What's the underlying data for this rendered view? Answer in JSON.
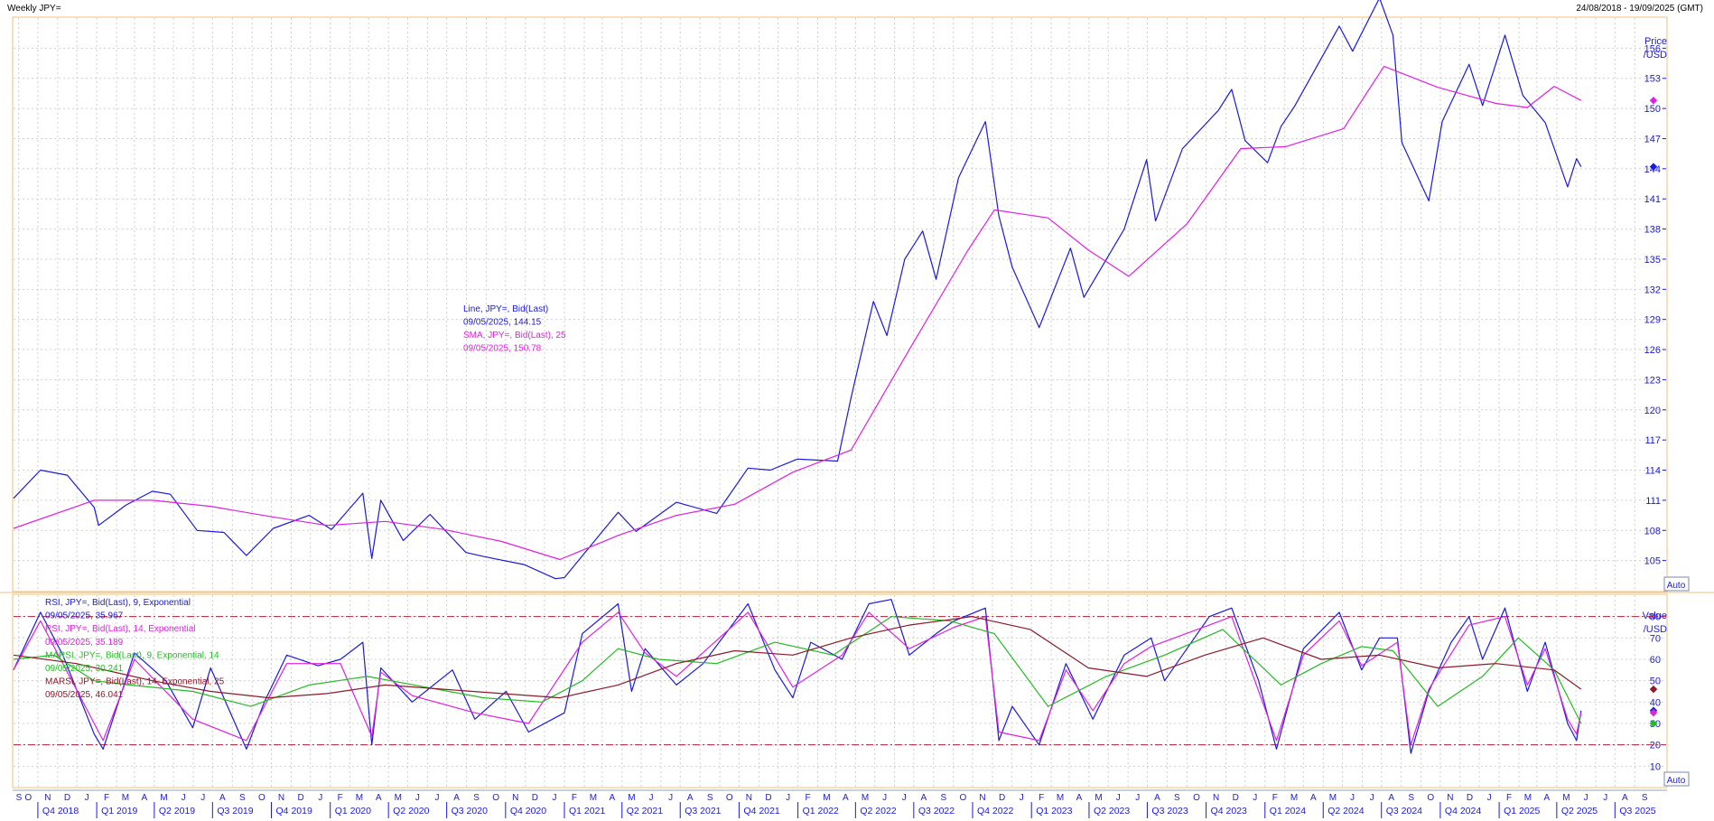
{
  "header": {
    "title": "Weekly JPY=",
    "date_range": "24/08/2018 - 19/09/2025 (GMT)"
  },
  "price_panel": {
    "axis_title_1": "Price",
    "axis_title_2": "/USD",
    "auto_label": "Auto",
    "legend": [
      {
        "text": "Line, JPY=, Bid(Last)",
        "color": "#1a1adb"
      },
      {
        "text": "09/05/2025, 144.15",
        "color": "#1a1adb"
      },
      {
        "text": "SMA, JPY=, Bid(Last),  25",
        "color": "#e020e0"
      },
      {
        "text": "09/05/2025, 150.78",
        "color": "#e020e0"
      }
    ]
  },
  "rsi_panel": {
    "axis_title_1": "Value",
    "axis_title_2": "/USD",
    "auto_label": "Auto",
    "legend": [
      {
        "text": "RSI, JPY=, Bid(Last),  9, Exponential",
        "color": "#1a1adb"
      },
      {
        "text": "09/05/2025, 35.967",
        "color": "#1a1adb"
      },
      {
        "text": "RSI, JPY=, Bid(Last),  14, Exponential",
        "color": "#e020e0"
      },
      {
        "text": "09/05/2025, 35.189",
        "color": "#e020e0"
      },
      {
        "text": "MARSI, JPY=, Bid(Last),  9, Exponential, 14",
        "color": "#22bb22"
      },
      {
        "text": "09/05/2025, 30.241",
        "color": "#22bb22"
      },
      {
        "text": "MARSI, JPY=, Bid(Last),  14, Exponential, 25",
        "color": "#8b1a2a"
      },
      {
        "text": "09/05/2025, 46.041",
        "color": "#8b1a2a"
      }
    ]
  },
  "x_axis": {
    "months": [
      "S",
      "O",
      "N",
      "D",
      "J",
      "F",
      "M",
      "A",
      "M",
      "J",
      "J",
      "A",
      "S",
      "O",
      "N",
      "D",
      "J",
      "F",
      "M",
      "A",
      "M",
      "J",
      "J",
      "A",
      "S",
      "O",
      "N",
      "D",
      "J",
      "F",
      "M",
      "A",
      "M",
      "J",
      "J",
      "A",
      "S",
      "O",
      "N",
      "D",
      "J",
      "F",
      "M",
      "A",
      "M",
      "J",
      "J",
      "A",
      "S",
      "O",
      "N",
      "D",
      "J",
      "F",
      "M",
      "A",
      "M",
      "J",
      "J",
      "A",
      "S",
      "O",
      "N",
      "D",
      "J",
      "F",
      "M",
      "A",
      "M",
      "J",
      "J",
      "A",
      "S",
      "O",
      "N",
      "D",
      "J",
      "F",
      "M",
      "A",
      "M",
      "J",
      "J",
      "A",
      "S"
    ],
    "quarters": [
      "Q4 2018",
      "Q1 2019",
      "Q2 2019",
      "Q3 2019",
      "Q4 2019",
      "Q1 2020",
      "Q2 2020",
      "Q3 2020",
      "Q4 2020",
      "Q1 2021",
      "Q2 2021",
      "Q3 2021",
      "Q4 2021",
      "Q1 2022",
      "Q2 2022",
      "Q3 2022",
      "Q4 2022",
      "Q1 2023",
      "Q2 2023",
      "Q3 2023",
      "Q4 2023",
      "Q1 2024",
      "Q2 2024",
      "Q3 2024",
      "Q4 2024",
      "Q1 2025",
      "Q2 2025",
      "Q3 2025"
    ]
  },
  "chart_data": [
    {
      "type": "line",
      "title": "Weekly JPY=",
      "ylabel": "Price /USD",
      "ylim": [
        102,
        159
      ],
      "yticks": [
        105,
        108,
        111,
        114,
        117,
        120,
        123,
        126,
        129,
        132,
        135,
        138,
        141,
        144,
        147,
        150,
        153,
        156
      ],
      "x_start": "2018-08-24",
      "x_end": "2025-09-19",
      "grid": true,
      "series": [
        {
          "name": "Line, JPY=, Bid(Last)",
          "color": "#1a1adb",
          "x": [
            "2018-08-24",
            "2018-10-05",
            "2018-11-16",
            "2018-12-28",
            "2019-01-04",
            "2019-02-15",
            "2019-03-29",
            "2019-04-26",
            "2019-06-07",
            "2019-07-19",
            "2019-08-23",
            "2019-10-04",
            "2019-11-29",
            "2020-01-03",
            "2020-02-21",
            "2020-03-06",
            "2020-03-20",
            "2020-04-24",
            "2020-06-05",
            "2020-07-31",
            "2020-08-28",
            "2020-10-30",
            "2020-12-18",
            "2021-01-01",
            "2021-03-26",
            "2021-04-23",
            "2021-06-25",
            "2021-08-27",
            "2021-10-15",
            "2021-11-19",
            "2021-12-31",
            "2022-03-04",
            "2022-03-25",
            "2022-04-29",
            "2022-05-20",
            "2022-06-17",
            "2022-07-15",
            "2022-08-05",
            "2022-09-09",
            "2022-10-21",
            "2022-11-11",
            "2022-12-02",
            "2023-01-13",
            "2023-03-03",
            "2023-03-24",
            "2023-05-26",
            "2023-06-30",
            "2023-07-14",
            "2023-08-25",
            "2023-10-20",
            "2023-11-10",
            "2023-12-01",
            "2024-01-05",
            "2024-01-26",
            "2024-02-16",
            "2024-04-26",
            "2024-05-17",
            "2024-06-28",
            "2024-07-19",
            "2024-08-02",
            "2024-09-13",
            "2024-10-04",
            "2024-11-15",
            "2024-12-06",
            "2025-01-10",
            "2025-02-07",
            "2025-03-14",
            "2025-04-18",
            "2025-05-02",
            "2025-05-09"
          ],
          "y": [
            111.2,
            114.0,
            113.5,
            110.3,
            108.5,
            110.5,
            111.9,
            111.6,
            108.0,
            107.8,
            105.5,
            108.2,
            109.5,
            108.1,
            111.7,
            105.2,
            111.0,
            107.0,
            109.6,
            105.8,
            105.4,
            104.6,
            103.2,
            103.3,
            109.8,
            107.9,
            110.8,
            109.7,
            114.2,
            114.0,
            115.1,
            114.9,
            121.2,
            130.8,
            127.4,
            135.0,
            137.8,
            133.0,
            143.1,
            148.7,
            139.3,
            134.2,
            128.2,
            136.1,
            131.2,
            138.0,
            144.9,
            138.8,
            146.0,
            149.8,
            151.9,
            146.8,
            144.6,
            148.2,
            150.2,
            158.2,
            155.7,
            161.0,
            157.3,
            146.6,
            140.8,
            148.7,
            154.4,
            150.3,
            157.3,
            151.3,
            148.6,
            142.2,
            145.0,
            144.2
          ]
        },
        {
          "name": "SMA, JPY=, Bid(Last),  25",
          "color": "#e020e0",
          "x": [
            "2018-08-24",
            "2018-12-28",
            "2019-03-29",
            "2019-06-28",
            "2019-09-27",
            "2019-12-27",
            "2020-03-27",
            "2020-06-26",
            "2020-09-25",
            "2020-12-25",
            "2021-03-26",
            "2021-06-25",
            "2021-09-24",
            "2021-12-24",
            "2022-03-25",
            "2022-06-24",
            "2022-09-23",
            "2022-11-04",
            "2023-01-27",
            "2023-03-31",
            "2023-06-02",
            "2023-09-01",
            "2023-11-24",
            "2024-02-02",
            "2024-05-03",
            "2024-07-05",
            "2024-09-27",
            "2024-12-27",
            "2025-02-14",
            "2025-03-28",
            "2025-05-09"
          ],
          "y": [
            108.2,
            111.0,
            111.0,
            110.4,
            109.4,
            108.5,
            108.9,
            108.1,
            106.9,
            105.1,
            107.5,
            109.5,
            110.6,
            113.8,
            116.0,
            126.0,
            135.8,
            139.9,
            139.1,
            135.9,
            133.3,
            138.5,
            146.0,
            146.2,
            148.0,
            154.2,
            152.1,
            150.5,
            150.1,
            152.2,
            150.8
          ]
        }
      ]
    },
    {
      "type": "line",
      "ylabel": "Value /USD",
      "ylim": [
        0,
        90
      ],
      "yticks": [
        10,
        20,
        30,
        40,
        50,
        60,
        70,
        80
      ],
      "reference_lines": [
        20,
        80
      ],
      "x_start": "2018-08-24",
      "x_end": "2025-09-19",
      "grid": true,
      "series": [
        {
          "name": "RSI, JPY=, Bid(Last),  9, Exponential",
          "color": "#1a1adb",
          "x": [
            "2018-08-24",
            "2018-10-05",
            "2018-11-09",
            "2018-12-28",
            "2019-01-11",
            "2019-03-01",
            "2019-04-19",
            "2019-05-31",
            "2019-06-28",
            "2019-08-23",
            "2019-09-20",
            "2019-10-25",
            "2019-12-13",
            "2020-01-17",
            "2020-02-21",
            "2020-03-06",
            "2020-03-20",
            "2020-05-08",
            "2020-07-10",
            "2020-08-14",
            "2020-10-02",
            "2020-11-06",
            "2021-01-01",
            "2021-01-29",
            "2021-03-26",
            "2021-04-16",
            "2021-05-07",
            "2021-06-25",
            "2021-08-06",
            "2021-10-15",
            "2021-11-26",
            "2021-12-24",
            "2022-01-21",
            "2022-03-11",
            "2022-04-22",
            "2022-05-27",
            "2022-06-24",
            "2022-08-05",
            "2022-09-02",
            "2022-10-21",
            "2022-11-11",
            "2022-12-02",
            "2023-01-13",
            "2023-02-24",
            "2023-04-07",
            "2023-05-26",
            "2023-07-07",
            "2023-07-28",
            "2023-10-06",
            "2023-11-10",
            "2023-12-22",
            "2024-01-19",
            "2024-03-01",
            "2024-04-26",
            "2024-05-31",
            "2024-06-28",
            "2024-07-26",
            "2024-08-16",
            "2024-09-13",
            "2024-10-18",
            "2024-11-15",
            "2024-12-06",
            "2025-01-10",
            "2025-02-14",
            "2025-03-14",
            "2025-04-18",
            "2025-05-02",
            "2025-05-09"
          ],
          "y": [
            55,
            82,
            62,
            25,
            18,
            63,
            50,
            28,
            56,
            18,
            40,
            62,
            57,
            60,
            68,
            20,
            56,
            40,
            55,
            32,
            45,
            26,
            35,
            72,
            86,
            45,
            65,
            48,
            58,
            86,
            55,
            42,
            68,
            60,
            86,
            88,
            62,
            72,
            78,
            84,
            22,
            38,
            20,
            58,
            32,
            62,
            70,
            50,
            80,
            84,
            50,
            18,
            65,
            82,
            55,
            70,
            70,
            16,
            45,
            68,
            80,
            60,
            84,
            45,
            68,
            30,
            22,
            36
          ]
        },
        {
          "name": "RSI, JPY=, Bid(Last),  14, Exponential",
          "color": "#e020e0",
          "x": [
            "2018-08-24",
            "2018-10-05",
            "2018-12-28",
            "2019-01-11",
            "2019-03-01",
            "2019-05-31",
            "2019-08-23",
            "2019-10-25",
            "2020-01-17",
            "2020-03-06",
            "2020-03-20",
            "2020-05-08",
            "2020-08-14",
            "2020-11-06",
            "2021-01-29",
            "2021-03-26",
            "2021-05-07",
            "2021-06-25",
            "2021-10-15",
            "2021-12-24",
            "2022-03-11",
            "2022-04-22",
            "2022-06-24",
            "2022-09-02",
            "2022-10-21",
            "2022-11-11",
            "2023-01-13",
            "2023-02-24",
            "2023-04-07",
            "2023-05-26",
            "2023-07-07",
            "2023-10-06",
            "2023-11-10",
            "2024-01-19",
            "2024-03-01",
            "2024-04-26",
            "2024-05-31",
            "2024-07-26",
            "2024-08-16",
            "2024-09-13",
            "2024-11-15",
            "2025-01-10",
            "2025-02-14",
            "2025-03-14",
            "2025-04-18",
            "2025-05-02",
            "2025-05-09"
          ],
          "y": [
            55,
            78,
            30,
            22,
            60,
            32,
            22,
            58,
            58,
            24,
            54,
            43,
            35,
            30,
            68,
            82,
            63,
            52,
            82,
            47,
            62,
            82,
            65,
            75,
            80,
            26,
            22,
            55,
            36,
            58,
            66,
            76,
            80,
            22,
            62,
            78,
            57,
            68,
            20,
            46,
            76,
            80,
            48,
            65,
            32,
            25,
            35
          ]
        },
        {
          "name": "MARSI, JPY=, Bid(Last),  9, Exponential, 14",
          "color": "#22bb22",
          "x": [
            "2018-08-24",
            "2018-10-26",
            "2018-12-28",
            "2019-02-22",
            "2019-05-31",
            "2019-08-30",
            "2019-11-29",
            "2020-02-28",
            "2020-05-29",
            "2020-08-28",
            "2020-11-27",
            "2021-01-29",
            "2021-03-26",
            "2021-05-28",
            "2021-08-27",
            "2021-11-26",
            "2022-02-25",
            "2022-05-27",
            "2022-08-26",
            "2022-11-04",
            "2023-01-27",
            "2023-04-28",
            "2023-07-28",
            "2023-10-27",
            "2024-01-26",
            "2024-03-29",
            "2024-05-31",
            "2024-07-19",
            "2024-09-27",
            "2024-12-06",
            "2025-01-31",
            "2025-03-28",
            "2025-05-09"
          ],
          "y": [
            60,
            62,
            50,
            48,
            45,
            38,
            48,
            52,
            47,
            42,
            40,
            50,
            65,
            60,
            58,
            68,
            62,
            80,
            78,
            72,
            38,
            52,
            62,
            74,
            48,
            58,
            66,
            64,
            38,
            52,
            70,
            55,
            30
          ]
        },
        {
          "name": "MARSI, JPY=, Bid(Last),  14, Exponential, 25",
          "color": "#8b1a2a",
          "x": [
            "2018-08-24",
            "2018-11-30",
            "2019-03-29",
            "2019-06-28",
            "2019-09-27",
            "2019-12-27",
            "2020-03-27",
            "2020-06-26",
            "2020-09-25",
            "2020-12-25",
            "2021-03-26",
            "2021-06-25",
            "2021-09-24",
            "2021-12-24",
            "2022-03-25",
            "2022-06-24",
            "2022-09-30",
            "2022-12-30",
            "2023-03-31",
            "2023-06-30",
            "2023-09-29",
            "2023-12-29",
            "2024-03-29",
            "2024-06-28",
            "2024-09-27",
            "2024-12-27",
            "2025-03-28",
            "2025-05-09"
          ],
          "y": [
            62,
            58,
            50,
            45,
            42,
            44,
            48,
            46,
            44,
            42,
            48,
            58,
            64,
            62,
            70,
            76,
            80,
            74,
            56,
            52,
            62,
            70,
            60,
            62,
            56,
            58,
            55,
            46
          ]
        }
      ]
    }
  ]
}
